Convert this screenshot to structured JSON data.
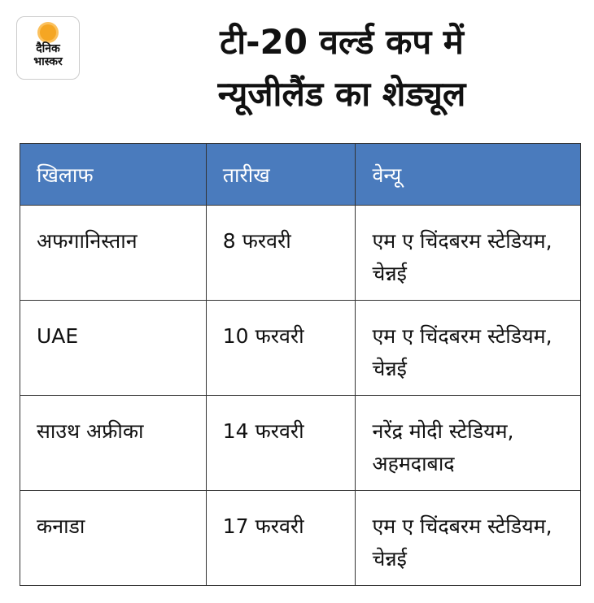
{
  "logo": {
    "line1": "दैनिक",
    "line2": "भास्कर",
    "brand_color": "#f5a623"
  },
  "title": {
    "line1": "टी-20 वर्ल्ड कप में",
    "line2": "न्यूजीलैंड का शेड्यूल"
  },
  "table": {
    "header_color": "#4a7bbd",
    "headers": [
      "खिलाफ",
      "तारीख",
      "वेन्यू"
    ],
    "rows": [
      [
        "अफगानिस्तान",
        "8 फरवरी",
        "एम ए चिंदबरम स्टेडियम, चेन्नई"
      ],
      [
        "UAE",
        "10 फरवरी",
        "एम ए चिंदबरम स्टेडियम, चेन्नई"
      ],
      [
        "साउथ अफ्रीका",
        "14 फरवरी",
        "नरेंद्र मोदी स्टेडियम, अहमदाबाद"
      ],
      [
        "कनाडा",
        "17 फरवरी",
        "एम ए चिंदबरम स्टेडियम, चेन्नई"
      ]
    ]
  }
}
